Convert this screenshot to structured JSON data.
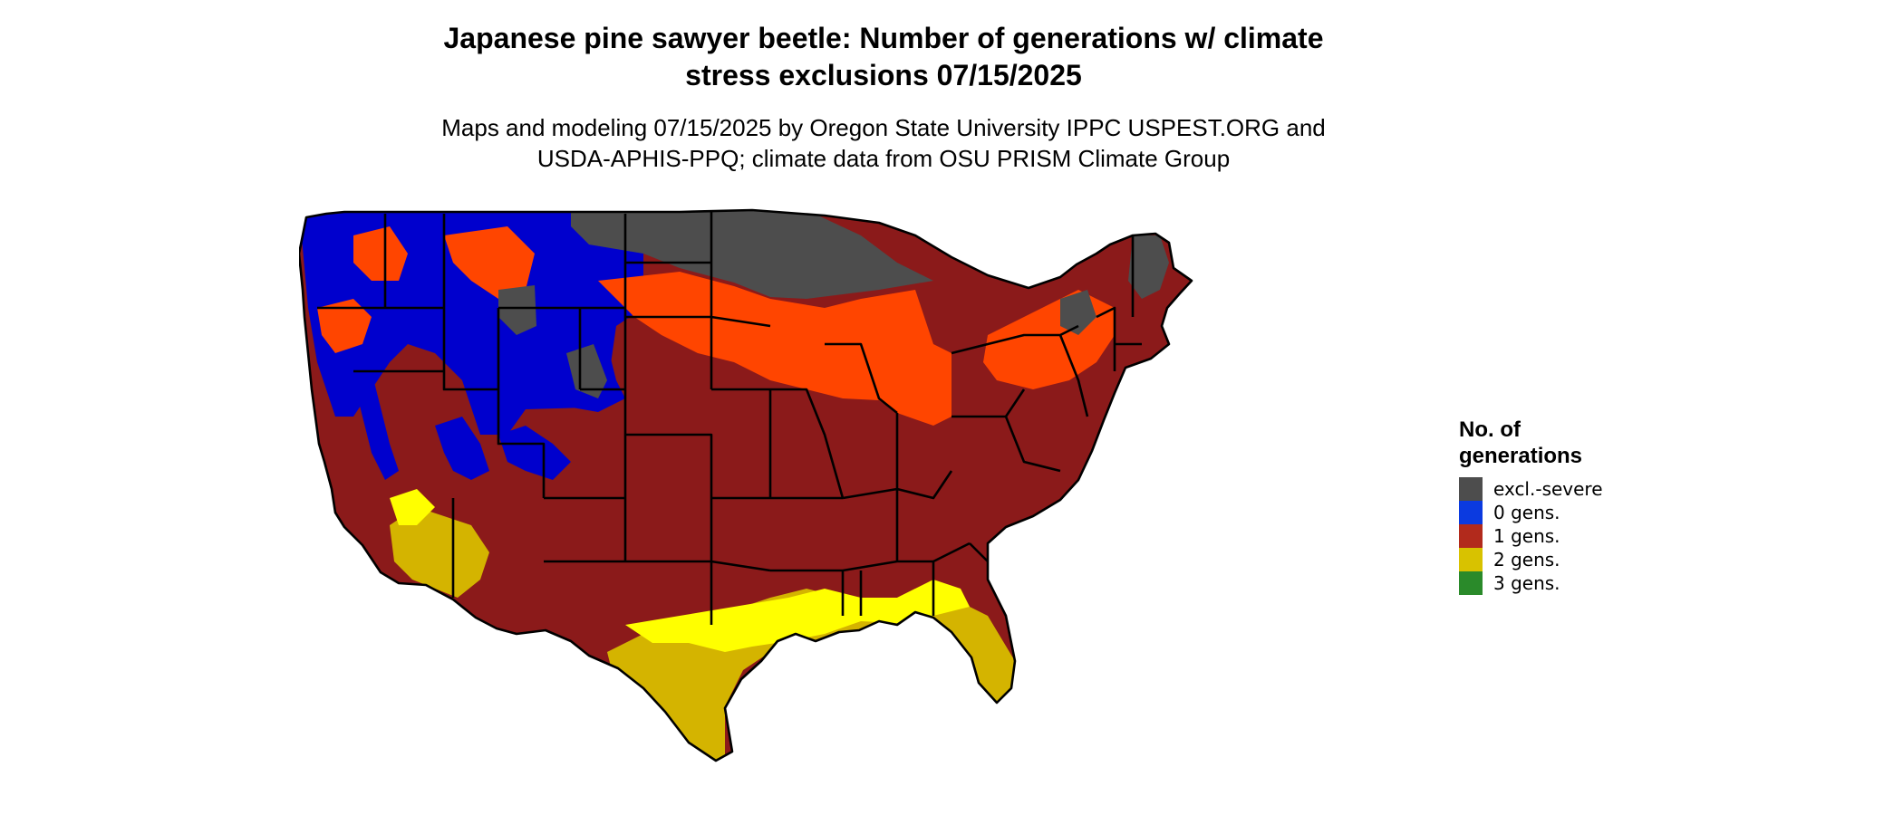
{
  "title_line1": "Japanese pine sawyer beetle: Number of generations w/ climate",
  "title_line2": "stress exclusions 07/15/2025",
  "subtitle_line1": "Maps and modeling 07/15/2025 by Oregon State University IPPC USPEST.ORG and",
  "subtitle_line2": "USDA-APHIS-PPQ; climate data from OSU PRISM Climate Group",
  "legend": {
    "title_line1": "No. of",
    "title_line2": "generations",
    "items": [
      {
        "label": "excl.-severe",
        "color": "#4d4d4d"
      },
      {
        "label": "0 gens.",
        "color": "#0b3ae0"
      },
      {
        "label": "1 gens.",
        "color": "#b22a1c"
      },
      {
        "label": "2 gens.",
        "color": "#d8c200"
      },
      {
        "label": "3 gens.",
        "color": "#2a8a2a"
      }
    ]
  },
  "map_colors": {
    "excluded": "#4d4d4d",
    "zero": "#0000cd",
    "one": "#8b1a1a",
    "one_partial": "#ff4500",
    "two": "#d4b400",
    "two_bright": "#ffff00",
    "water": "#ffffff",
    "border": "#000000"
  }
}
